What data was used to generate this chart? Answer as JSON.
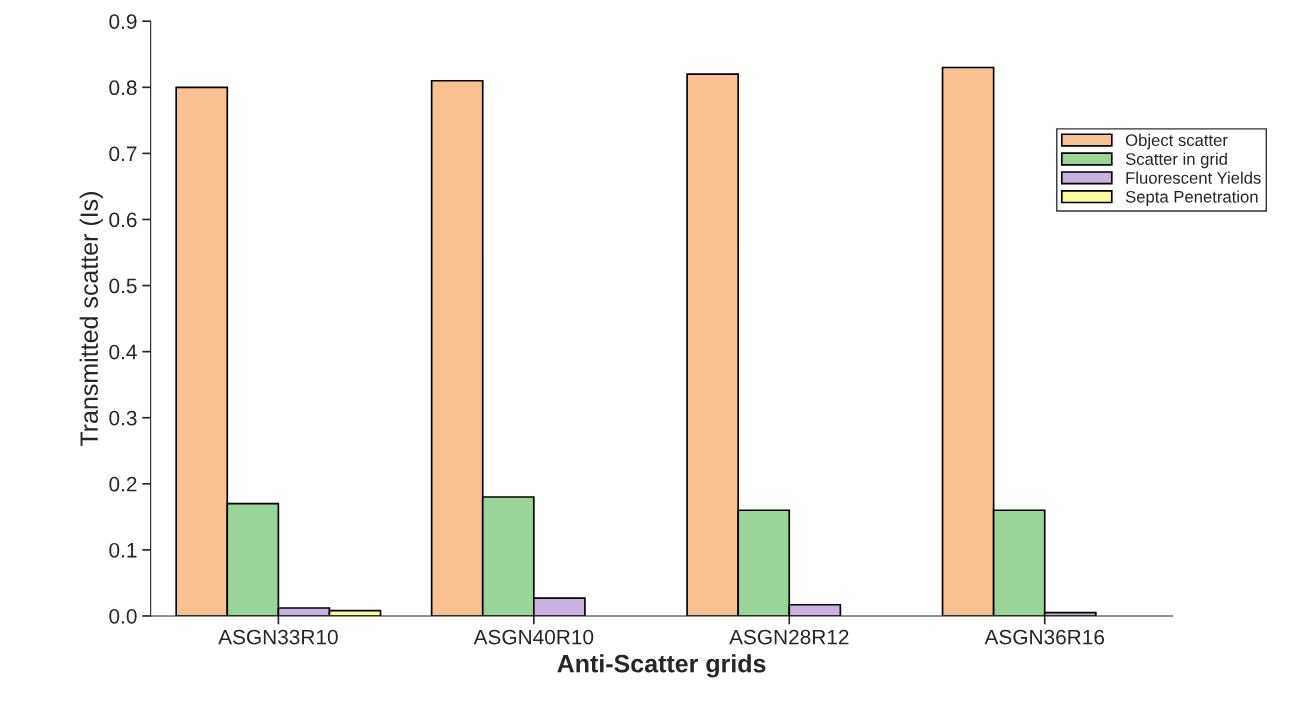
{
  "chart_data": {
    "type": "bar",
    "xlabel": "Anti-Scatter grids",
    "ylabel": "Transmitted scatter (Is)",
    "categories": [
      "ASGN33R10",
      "ASGN40R10",
      "ASGN28R12",
      "ASGN36R16"
    ],
    "series": [
      {
        "name": "Object scatter",
        "color": "#f9c18f",
        "values": [
          0.8,
          0.81,
          0.82,
          0.83
        ]
      },
      {
        "name": "Scatter in grid",
        "color": "#98d596",
        "values": [
          0.17,
          0.18,
          0.16,
          0.16
        ]
      },
      {
        "name": "Fluorescent Yields",
        "color": "#c9b1e0",
        "values": [
          0.012,
          0.027,
          0.017,
          0.005
        ]
      },
      {
        "name": "Septa Penetration",
        "color": "#fbfa9a",
        "values": [
          0.008,
          null,
          null,
          null
        ]
      }
    ],
    "ylim": [
      0,
      0.9
    ],
    "yticks": [
      {
        "value": 0,
        "label": "0.0"
      },
      {
        "value": 0.1,
        "label": "0.1"
      },
      {
        "value": 0.2,
        "label": "0.2"
      },
      {
        "value": 0.3,
        "label": "0.3"
      },
      {
        "value": 0.4,
        "label": "0.4"
      },
      {
        "value": 0.5,
        "label": "0.5"
      },
      {
        "value": 0.6,
        "label": "0.6"
      },
      {
        "value": 0.7,
        "label": "0.7"
      },
      {
        "value": 0.8,
        "label": "0.8"
      },
      {
        "value": 0.9,
        "label": "0.9"
      }
    ],
    "grid": false,
    "legend": "right"
  }
}
